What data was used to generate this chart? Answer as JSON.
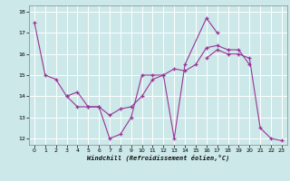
{
  "xlabel": "Windchill (Refroidissement éolien,°C)",
  "xlim": [
    0,
    23
  ],
  "ylim": [
    12,
    18
  ],
  "yticks": [
    12,
    13,
    14,
    15,
    16,
    17,
    18
  ],
  "xticks": [
    0,
    1,
    2,
    3,
    4,
    5,
    6,
    7,
    8,
    9,
    10,
    11,
    12,
    13,
    14,
    15,
    16,
    17,
    18,
    19,
    20,
    21,
    22,
    23
  ],
  "line_color": "#993399",
  "background_color": "#cce8e8",
  "grid_color": "#ffffff",
  "line1_x": [
    0,
    1,
    2,
    3,
    4,
    5,
    6,
    7,
    8,
    9,
    10,
    11,
    12,
    13,
    14,
    16,
    17
  ],
  "line1_y": [
    17.5,
    15.0,
    14.8,
    14.0,
    13.5,
    13.5,
    13.5,
    12.0,
    12.2,
    13.0,
    15.0,
    15.0,
    15.0,
    12.0,
    15.5,
    17.7,
    17.0
  ],
  "line2_x": [
    3,
    4,
    5,
    6,
    7,
    8,
    9,
    10,
    11,
    12,
    13,
    14,
    15,
    16,
    17,
    18,
    19,
    20
  ],
  "line2_y": [
    14.0,
    14.2,
    13.5,
    13.5,
    13.1,
    13.4,
    13.5,
    14.0,
    14.8,
    15.0,
    15.3,
    15.2,
    15.5,
    16.3,
    16.4,
    16.2,
    16.2,
    15.5
  ],
  "line3_x": [
    16,
    17,
    18,
    19,
    20,
    21,
    22,
    23
  ],
  "line3_y": [
    15.8,
    16.2,
    16.0,
    16.0,
    15.8,
    12.5,
    12.0,
    11.9
  ]
}
